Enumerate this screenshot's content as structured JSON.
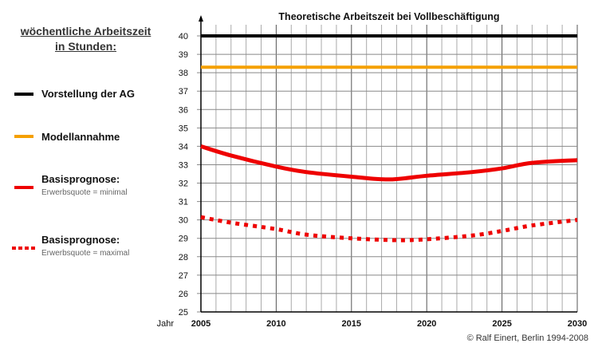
{
  "legend": {
    "title_line1": "wöchentliche Arbeitszeit",
    "title_line2": "in Stunden:",
    "items": [
      {
        "label": "Vorstellung der AG",
        "sub": "",
        "color": "#000000",
        "style": "solid"
      },
      {
        "label": "Modellannahme",
        "sub": "",
        "color": "#f5a000",
        "style": "solid"
      },
      {
        "label": "Basisprognose:",
        "sub": "Erwerbsquote = minimal",
        "color": "#ee0000",
        "style": "solid"
      },
      {
        "label": "Basisprognose:",
        "sub": "Erwerbsquote = maximal",
        "color": "#ee0000",
        "style": "dotted"
      }
    ]
  },
  "credit": "© Ralf Einert, Berlin 1994-2008",
  "chart_data": {
    "type": "line",
    "title": "Theoretische Arbeitszeit bei Vollbeschäftigung",
    "xlabel": "Jahr",
    "ylabel": "",
    "xlim": [
      2005,
      2030
    ],
    "ylim": [
      25,
      40
    ],
    "xticks": [
      2005,
      2010,
      2015,
      2020,
      2025,
      2030
    ],
    "yticks": [
      25,
      26,
      27,
      28,
      29,
      30,
      31,
      32,
      33,
      34,
      35,
      36,
      37,
      38,
      39,
      40
    ],
    "grid": true,
    "series": [
      {
        "name": "Vorstellung der AG",
        "color": "#000000",
        "style": "solid",
        "x": [
          2005,
          2030
        ],
        "y": [
          40,
          40
        ]
      },
      {
        "name": "Modellannahme",
        "color": "#f5a000",
        "style": "solid",
        "x": [
          2005,
          2030
        ],
        "y": [
          38.3,
          38.3
        ]
      },
      {
        "name": "Basisprognose: Erwerbsquote = minimal",
        "color": "#ee0000",
        "style": "solid",
        "x": [
          2005,
          2007,
          2010,
          2012,
          2015,
          2017.5,
          2020,
          2023,
          2025,
          2027,
          2030
        ],
        "y": [
          34.0,
          33.5,
          32.9,
          32.6,
          32.35,
          32.2,
          32.4,
          32.6,
          32.8,
          33.1,
          33.25
        ]
      },
      {
        "name": "Basisprognose: Erwerbsquote = maximal",
        "color": "#ee0000",
        "style": "dotted",
        "x": [
          2005,
          2007,
          2010,
          2012,
          2015,
          2018,
          2020,
          2023,
          2025,
          2027,
          2030
        ],
        "y": [
          30.15,
          29.85,
          29.5,
          29.2,
          29.0,
          28.9,
          28.95,
          29.15,
          29.4,
          29.7,
          30.0
        ]
      }
    ]
  }
}
